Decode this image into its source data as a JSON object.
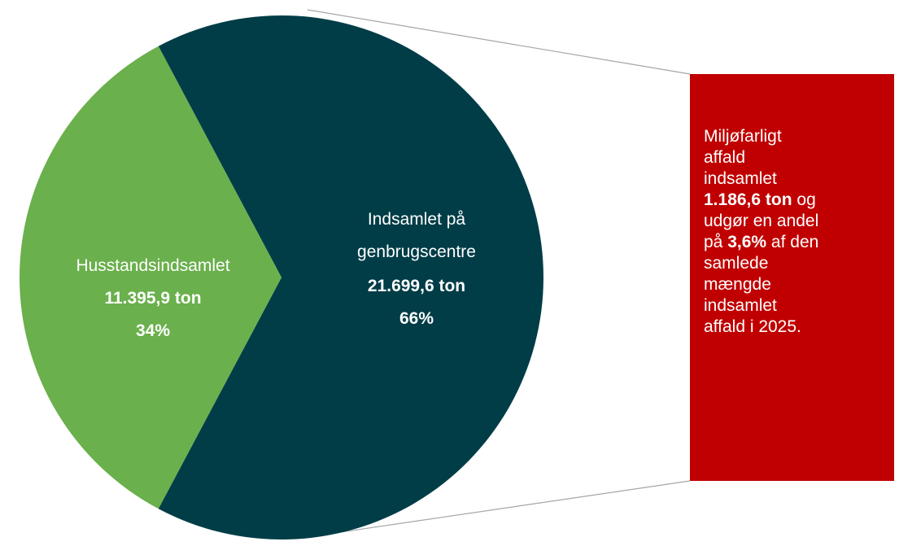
{
  "chart_data": {
    "type": "pie",
    "slices": [
      {
        "label": "Husstandsindsamlet",
        "value_text": "11.395,9 ton",
        "percent_text": "34%",
        "value": 11395.9,
        "percent": 34,
        "color": "#6ab04c"
      },
      {
        "label_lines": [
          "Indsamlet på",
          "genbrugscentre"
        ],
        "value_text": "21.699,6 ton",
        "percent_text": "66%",
        "value": 21699.6,
        "percent": 66,
        "color": "#003d47"
      }
    ],
    "exploded_detail": {
      "color": "#c00000",
      "connector_color": "#a6a6a6",
      "value": 1186.6,
      "percent": 3.6,
      "text": {
        "line1": "Miljøfarligt",
        "line2": "affald",
        "line3": "indsamlet",
        "amount": "1.186,6 ton",
        "after_amount": " og",
        "line5": "udgør en andel",
        "pa": "på ",
        "share": "3,6%",
        "after_share": " af den",
        "line7": "samlede",
        "line8": "mængde",
        "line9": "indsamlet",
        "line10": "affald i 2025."
      }
    }
  }
}
